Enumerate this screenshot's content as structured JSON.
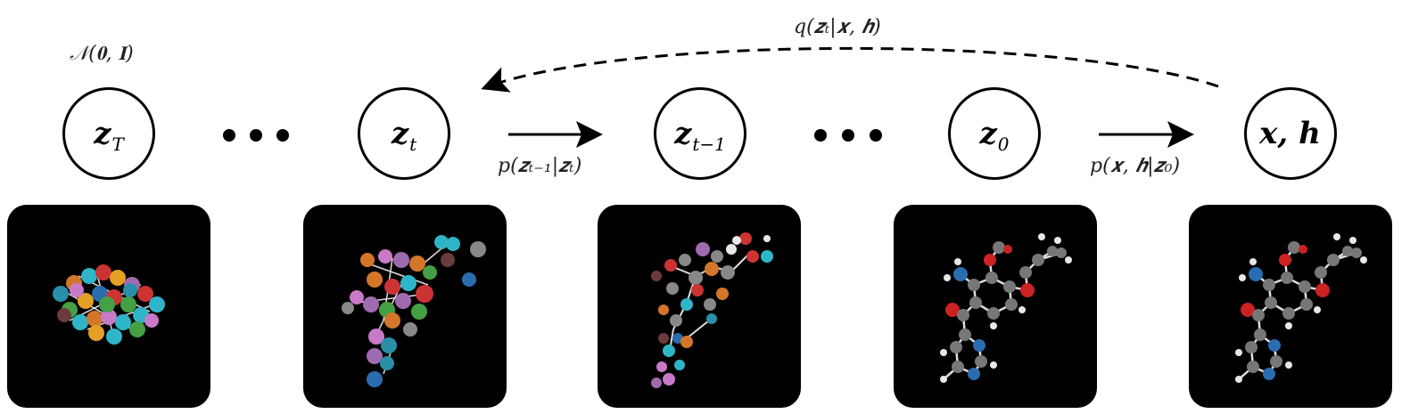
{
  "nodes": [
    {
      "var": "z",
      "sub": "T"
    },
    {
      "var": "z",
      "sub": "t"
    },
    {
      "var": "z",
      "sub": "t−1"
    },
    {
      "var": "z",
      "sub": "0"
    },
    {
      "var": "x, h",
      "sub": ""
    }
  ],
  "labels": {
    "prior": "𝒩(𝟎, 𝐈)",
    "forward": "q(𝒛ₜ|𝒙, 𝒉)",
    "reverse_step": "p(𝒛ₜ₋₁|𝒛ₜ)",
    "decoder": "p(𝒙, 𝒉|𝒛₀)"
  },
  "panels": [
    {
      "stage": "noise"
    },
    {
      "stage": "partly-denoised"
    },
    {
      "stage": "mostly-denoised"
    },
    {
      "stage": "molecule"
    },
    {
      "stage": "molecule-final"
    }
  ],
  "colors": {
    "stroke": "#000000",
    "panel_bg": "#000000",
    "carbon": "#6e6e6e",
    "oxygen": "#cc2222",
    "nitrogen": "#2a6cb0",
    "hydrogen": "#e8e8e8"
  }
}
